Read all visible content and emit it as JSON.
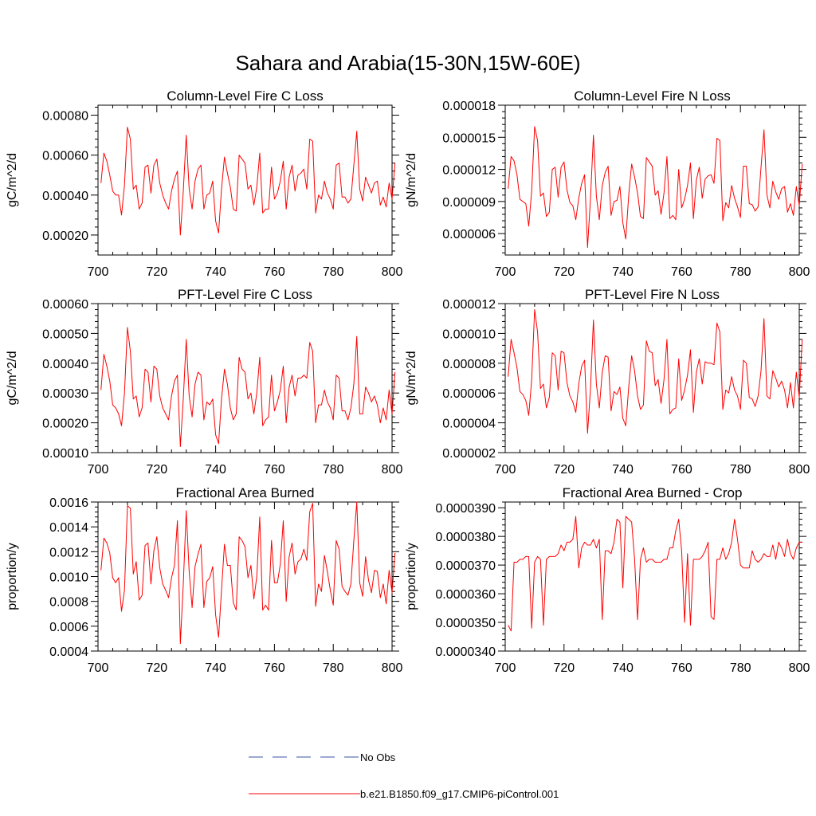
{
  "figure": {
    "title": "Sahara and Arabia(15-30N,15W-60E)",
    "legend": {
      "obs_label": "No Obs",
      "obs_color": "#3b4fa8",
      "model_label": "b.e21.B1850.f09_g17.CMIP6-piControl.001",
      "model_color": "#ff0000"
    }
  },
  "chart_data": [
    {
      "type": "line",
      "title": "Column-Level Fire C Loss",
      "xlabel": "",
      "ylabel": "gC/m^2/d",
      "xlim": [
        700,
        800
      ],
      "ylim": [
        0.0001,
        0.00085
      ],
      "xticks": [
        700,
        720,
        740,
        760,
        780,
        800
      ],
      "xtick_labels": [
        "700",
        "720",
        "740",
        "760",
        "780",
        "800"
      ],
      "yticks": [
        0.0002,
        0.0004,
        0.0006,
        0.0008
      ],
      "ytick_labels": [
        "0.00020",
        "0.00040",
        "0.00060",
        "0.00080"
      ],
      "series": [
        {
          "name": "b.e21.B1850.f09_g17.CMIP6-piControl.001",
          "x_start": 701,
          "values": [
            0.00046,
            0.00061,
            0.00057,
            0.0005,
            0.00042,
            0.0004,
            0.0004,
            0.0003,
            0.00045,
            0.00074,
            0.00068,
            0.00043,
            0.00045,
            0.00033,
            0.00036,
            0.00054,
            0.00055,
            0.00041,
            0.00055,
            0.00058,
            0.00046,
            0.0004,
            0.00036,
            0.00033,
            0.00042,
            0.00048,
            0.00052,
            0.0002,
            0.00042,
            0.0007,
            0.00043,
            0.00033,
            0.00047,
            0.00053,
            0.00055,
            0.00033,
            0.0004,
            0.00041,
            0.00047,
            0.00027,
            0.00021,
            0.00043,
            0.00059,
            0.00051,
            0.00044,
            0.00033,
            0.00032,
            0.0006,
            0.00058,
            0.00056,
            0.00043,
            0.00045,
            0.00035,
            0.00044,
            0.00061,
            0.00031,
            0.00033,
            0.00033,
            0.00054,
            0.00038,
            0.00041,
            0.00047,
            0.00057,
            0.00033,
            0.00049,
            0.00055,
            0.00042,
            0.0005,
            0.00051,
            0.00053,
            0.00043,
            0.00068,
            0.00067,
            0.00031,
            0.0004,
            0.00038,
            0.00047,
            0.00041,
            0.00038,
            0.00033,
            0.00055,
            0.00056,
            0.00039,
            0.00039,
            0.00036,
            0.00038,
            0.00055,
            0.00072,
            0.00043,
            0.00037,
            0.00049,
            0.00045,
            0.00041,
            0.00046,
            0.00047,
            0.00035,
            0.00039,
            0.00034,
            0.00046,
            0.00038,
            0.00056
          ]
        }
      ]
    },
    {
      "type": "line",
      "title": "Column-Level Fire N Loss",
      "xlabel": "",
      "ylabel": "gN/m^2/d",
      "xlim": [
        700,
        800
      ],
      "ylim": [
        4e-06,
        1.8e-05
      ],
      "xticks": [
        700,
        720,
        740,
        760,
        780,
        800
      ],
      "xtick_labels": [
        "700",
        "720",
        "740",
        "760",
        "780",
        "800"
      ],
      "yticks": [
        6e-06,
        9e-06,
        1.2e-05,
        1.5e-05,
        1.8e-05
      ],
      "ytick_labels": [
        "0.000006",
        "0.000009",
        "0.000012",
        "0.000015",
        "0.000018"
      ],
      "series": [
        {
          "name": "b.e21.B1850.f09_g17.CMIP6-piControl.001",
          "x_start": 701,
          "values": [
            1.02e-05,
            1.32e-05,
            1.28e-05,
            1.15e-05,
            9.2e-06,
            9e-06,
            8.8e-06,
            6.7e-06,
            1e-05,
            1.6e-05,
            1.47e-05,
            9.5e-06,
            9.8e-06,
            7.6e-06,
            8e-06,
            1.2e-05,
            1.22e-05,
            9.4e-06,
            1.22e-05,
            1.27e-05,
            1.01e-05,
            8.9e-06,
            8.6e-06,
            7.3e-06,
            9.3e-06,
            1.07e-05,
            1.15e-05,
            4.7e-06,
            9.3e-06,
            1.52e-05,
            9.5e-06,
            7.3e-06,
            1.05e-05,
            1.17e-05,
            1.23e-05,
            7.7e-06,
            9e-06,
            9.1e-06,
            1.04e-05,
            7e-06,
            5.5e-06,
            9.6e-06,
            1.25e-05,
            1.13e-05,
            9.8e-06,
            7.6e-06,
            7.4e-06,
            1.31e-05,
            1.27e-05,
            1.23e-05,
            9.6e-06,
            1e-05,
            7.8e-06,
            9.8e-06,
            1.32e-05,
            7.4e-06,
            7.7e-06,
            7.3e-06,
            1.2e-05,
            8.4e-06,
            9.2e-06,
            1.05e-05,
            1.26e-05,
            7.4e-06,
            1.1e-05,
            1.22e-05,
            9.3e-06,
            1.11e-05,
            1.14e-05,
            1.15e-05,
            1.07e-05,
            1.49e-05,
            1.47e-05,
            7.2e-06,
            8.9e-06,
            8.4e-06,
            1.05e-05,
            9.3e-06,
            8.5e-06,
            7.5e-06,
            1.23e-05,
            1.23e-05,
            8.8e-06,
            8.7e-06,
            8.1e-06,
            8.5e-06,
            1.22e-05,
            1.57e-05,
            9.6e-06,
            8.4e-06,
            1.09e-05,
            9.9e-06,
            9.2e-06,
            1.02e-05,
            1.04e-05,
            8e-06,
            8.8e-06,
            7.7e-06,
            1.04e-05,
            8.6e-06,
            1.25e-05
          ]
        }
      ]
    },
    {
      "type": "line",
      "title": "PFT-Level Fire C Loss",
      "xlabel": "",
      "ylabel": "gC/m^2/d",
      "xlim": [
        700,
        800
      ],
      "ylim": [
        0.0001,
        0.0006
      ],
      "xticks": [
        700,
        720,
        740,
        760,
        780,
        800
      ],
      "xtick_labels": [
        "700",
        "720",
        "740",
        "760",
        "780",
        "800"
      ],
      "yticks": [
        0.0001,
        0.0002,
        0.0003,
        0.0004,
        0.0005,
        0.0006
      ],
      "ytick_labels": [
        "0.00010",
        "0.00020",
        "0.00030",
        "0.00040",
        "0.00050",
        "0.00060"
      ],
      "series": [
        {
          "name": "b.e21.B1850.f09_g17.CMIP6-piControl.001",
          "x_start": 701,
          "values": [
            0.00031,
            0.00043,
            0.00039,
            0.00034,
            0.00026,
            0.00025,
            0.00023,
            0.00019,
            0.0003,
            0.00052,
            0.00044,
            0.00028,
            0.00029,
            0.00022,
            0.00025,
            0.00038,
            0.00037,
            0.00027,
            0.00039,
            0.00038,
            0.00029,
            0.00025,
            0.00023,
            0.00021,
            0.00029,
            0.00034,
            0.00036,
            0.00012,
            0.00028,
            0.00048,
            0.00029,
            0.00022,
            0.00033,
            0.00037,
            0.00036,
            0.00021,
            0.00027,
            0.00026,
            0.00028,
            0.00016,
            0.00013,
            0.00028,
            0.00038,
            0.00033,
            0.00025,
            0.00021,
            0.00023,
            0.00042,
            0.00038,
            0.00037,
            0.00028,
            0.0003,
            0.00023,
            0.0003,
            0.00042,
            0.00019,
            0.00021,
            0.00022,
            0.00036,
            0.00024,
            0.00027,
            0.00031,
            0.00039,
            0.0002,
            0.00032,
            0.00036,
            0.00029,
            0.00035,
            0.00035,
            0.00036,
            0.00035,
            0.00047,
            0.00044,
            0.0002,
            0.00026,
            0.00026,
            0.00031,
            0.00027,
            0.00025,
            0.00021,
            0.00036,
            0.00035,
            0.00024,
            0.00024,
            0.00021,
            0.00025,
            0.00033,
            0.00049,
            0.00023,
            0.00023,
            0.00032,
            0.0003,
            0.00027,
            0.00029,
            0.00026,
            0.0002,
            0.00025,
            0.00021,
            0.00031,
            0.00023,
            0.00037
          ]
        }
      ]
    },
    {
      "type": "line",
      "title": "PFT-Level Fire N Loss",
      "xlabel": "",
      "ylabel": "gN/m^2/d",
      "xlim": [
        700,
        800
      ],
      "ylim": [
        2e-06,
        1.2e-05
      ],
      "xticks": [
        700,
        720,
        740,
        760,
        780,
        800
      ],
      "xtick_labels": [
        "700",
        "720",
        "740",
        "760",
        "780",
        "800"
      ],
      "yticks": [
        2e-06,
        4e-06,
        6e-06,
        8e-06,
        1e-05,
        1.2e-05
      ],
      "ytick_labels": [
        "0.000002",
        "0.000004",
        "0.000006",
        "0.000008",
        "0.000010",
        "0.000012"
      ],
      "series": [
        {
          "name": "b.e21.B1850.f09_g17.CMIP6-piControl.001",
          "x_start": 701,
          "values": [
            7.1e-06,
            9.6e-06,
            8.7e-06,
            7.7e-06,
            6.1e-06,
            5.9e-06,
            5.5e-06,
            4.5e-06,
            6.9e-06,
            1.16e-05,
            1.01e-05,
            6.3e-06,
            6.6e-06,
            5e-06,
            5.7e-06,
            8.7e-06,
            8.5e-06,
            6.2e-06,
            8.8e-06,
            8.7e-06,
            6.7e-06,
            5.8e-06,
            5.4e-06,
            4.7e-06,
            6.6e-06,
            7.8e-06,
            8.2e-06,
            3.3e-06,
            6.3e-06,
            1.09e-05,
            6.6e-06,
            5e-06,
            7.4e-06,
            8.5e-06,
            8.4e-06,
            4.8e-06,
            6.1e-06,
            5.9e-06,
            6.4e-06,
            4.3e-06,
            3.8e-06,
            6.4e-06,
            8.5e-06,
            7.5e-06,
            5.8e-06,
            4.9e-06,
            5.2e-06,
            9.5e-06,
            8.8e-06,
            8.7e-06,
            6.5e-06,
            6.9e-06,
            5.3e-06,
            6.9e-06,
            9.6e-06,
            4.6e-06,
            4.9e-06,
            5e-06,
            8.3e-06,
            5.5e-06,
            6.2e-06,
            7.2e-06,
            8.9e-06,
            4.7e-06,
            7.4e-06,
            8.3e-06,
            6.6e-06,
            8.1e-06,
            8e-06,
            8e-06,
            7.9e-06,
            1.07e-05,
            1.01e-05,
            4.9e-06,
            6.2e-06,
            6e-06,
            7.1e-06,
            6.2e-06,
            5.8e-06,
            4.9e-06,
            8.2e-06,
            8e-06,
            5.7e-06,
            5.6e-06,
            5.1e-06,
            5.8e-06,
            7.5e-06,
            1.1e-05,
            5.8e-06,
            5.6e-06,
            7.5e-06,
            7e-06,
            6.4e-06,
            6.8e-06,
            6.2e-06,
            5e-06,
            6.7e-06,
            5e-06,
            7.4e-06,
            5.7e-06,
            9.6e-06
          ]
        }
      ]
    },
    {
      "type": "line",
      "title": "Fractional Area Burned",
      "xlabel": "",
      "ylabel": "proportion/y",
      "xlim": [
        700,
        800
      ],
      "ylim": [
        0.0004,
        0.0016
      ],
      "xticks": [
        700,
        720,
        740,
        760,
        780,
        800
      ],
      "xtick_labels": [
        "700",
        "720",
        "740",
        "760",
        "780",
        "800"
      ],
      "yticks": [
        0.0004,
        0.0006,
        0.0008,
        0.001,
        0.0012,
        0.0014,
        0.0016
      ],
      "ytick_labels": [
        "0.0004",
        "0.0006",
        "0.0008",
        "0.0010",
        "0.0012",
        "0.0014",
        "0.0016"
      ],
      "series": [
        {
          "name": "b.e21.B1850.f09_g17.CMIP6-piControl.001",
          "x_start": 701,
          "values": [
            0.00105,
            0.00131,
            0.00127,
            0.00119,
            0.00099,
            0.00095,
            0.00099,
            0.00072,
            0.00089,
            0.00157,
            0.00155,
            0.00102,
            0.00112,
            0.00081,
            0.00085,
            0.00125,
            0.00127,
            0.00094,
            0.00121,
            0.00132,
            0.00107,
            0.00094,
            0.00089,
            0.00083,
            0.00099,
            0.00109,
            0.00145,
            0.00046,
            0.00094,
            0.00153,
            0.00104,
            0.00075,
            0.00108,
            0.00118,
            0.00126,
            0.00075,
            0.00096,
            0.00099,
            0.00108,
            0.00069,
            0.00051,
            0.00089,
            0.00126,
            0.00109,
            0.00109,
            0.00079,
            0.00073,
            0.00132,
            0.00129,
            0.00124,
            0.00099,
            0.00109,
            0.00082,
            0.001,
            0.00148,
            0.00073,
            0.00077,
            0.00073,
            0.00129,
            0.00095,
            0.00095,
            0.0011,
            0.00145,
            0.0008,
            0.00116,
            0.00127,
            0.00102,
            0.00112,
            0.00114,
            0.00122,
            0.00113,
            0.00152,
            0.00159,
            0.00076,
            0.00094,
            0.00088,
            0.00117,
            0.00104,
            0.00089,
            0.00077,
            0.00129,
            0.00122,
            0.00092,
            0.00088,
            0.00085,
            0.00094,
            0.00129,
            0.0016,
            0.00095,
            0.00084,
            0.00116,
            0.00097,
            0.00087,
            0.00105,
            0.00104,
            0.00083,
            0.00094,
            0.00078,
            0.00105,
            0.00087,
            0.00119
          ]
        }
      ]
    },
    {
      "type": "line",
      "title": "Fractional Area Burned - Crop",
      "xlabel": "",
      "ylabel": "proportion/y",
      "xlim": [
        700,
        800
      ],
      "ylim": [
        3.4e-05,
        3.92e-05
      ],
      "xticks": [
        700,
        720,
        740,
        760,
        780,
        800
      ],
      "xtick_labels": [
        "700",
        "720",
        "740",
        "760",
        "780",
        "800"
      ],
      "yticks": [
        3.4e-05,
        3.5e-05,
        3.6e-05,
        3.7e-05,
        3.8e-05,
        3.9e-05
      ],
      "ytick_labels": [
        "0.0000340",
        "0.0000350",
        "0.0000360",
        "0.0000370",
        "0.0000380",
        "0.0000390"
      ],
      "series": [
        {
          "name": "b.e21.B1850.f09_g17.CMIP6-piControl.001",
          "x_start": 701,
          "values": [
            3.49e-05,
            3.47e-05,
            3.71e-05,
            3.71e-05,
            3.72e-05,
            3.72e-05,
            3.73e-05,
            3.73e-05,
            3.48e-05,
            3.71e-05,
            3.73e-05,
            3.72e-05,
            3.49e-05,
            3.72e-05,
            3.73e-05,
            3.73e-05,
            3.73e-05,
            3.74e-05,
            3.77e-05,
            3.75e-05,
            3.78e-05,
            3.78e-05,
            3.79e-05,
            3.87e-05,
            3.69e-05,
            3.76e-05,
            3.78e-05,
            3.77e-05,
            3.77e-05,
            3.79e-05,
            3.76e-05,
            3.79e-05,
            3.51e-05,
            3.75e-05,
            3.75e-05,
            3.74e-05,
            3.78e-05,
            3.86e-05,
            3.85e-05,
            3.62e-05,
            3.87e-05,
            3.86e-05,
            3.85e-05,
            3.72e-05,
            3.51e-05,
            3.72e-05,
            3.76e-05,
            3.71e-05,
            3.72e-05,
            3.72e-05,
            3.71e-05,
            3.71e-05,
            3.71e-05,
            3.72e-05,
            3.72e-05,
            3.76e-05,
            3.76e-05,
            3.82e-05,
            3.86e-05,
            3.75e-05,
            3.5e-05,
            3.74e-05,
            3.49e-05,
            3.72e-05,
            3.72e-05,
            3.72e-05,
            3.73e-05,
            3.75e-05,
            3.78e-05,
            3.52e-05,
            3.51e-05,
            3.72e-05,
            3.72e-05,
            3.76e-05,
            3.72e-05,
            3.74e-05,
            3.78e-05,
            3.86e-05,
            3.79e-05,
            3.7e-05,
            3.69e-05,
            3.69e-05,
            3.69e-05,
            3.75e-05,
            3.72e-05,
            3.71e-05,
            3.72e-05,
            3.74e-05,
            3.73e-05,
            3.73e-05,
            3.77e-05,
            3.72e-05,
            3.78e-05,
            3.76e-05,
            3.73e-05,
            3.79e-05,
            3.74e-05,
            3.72e-05,
            3.76e-05,
            3.78e-05,
            3.78e-05
          ]
        }
      ]
    }
  ]
}
